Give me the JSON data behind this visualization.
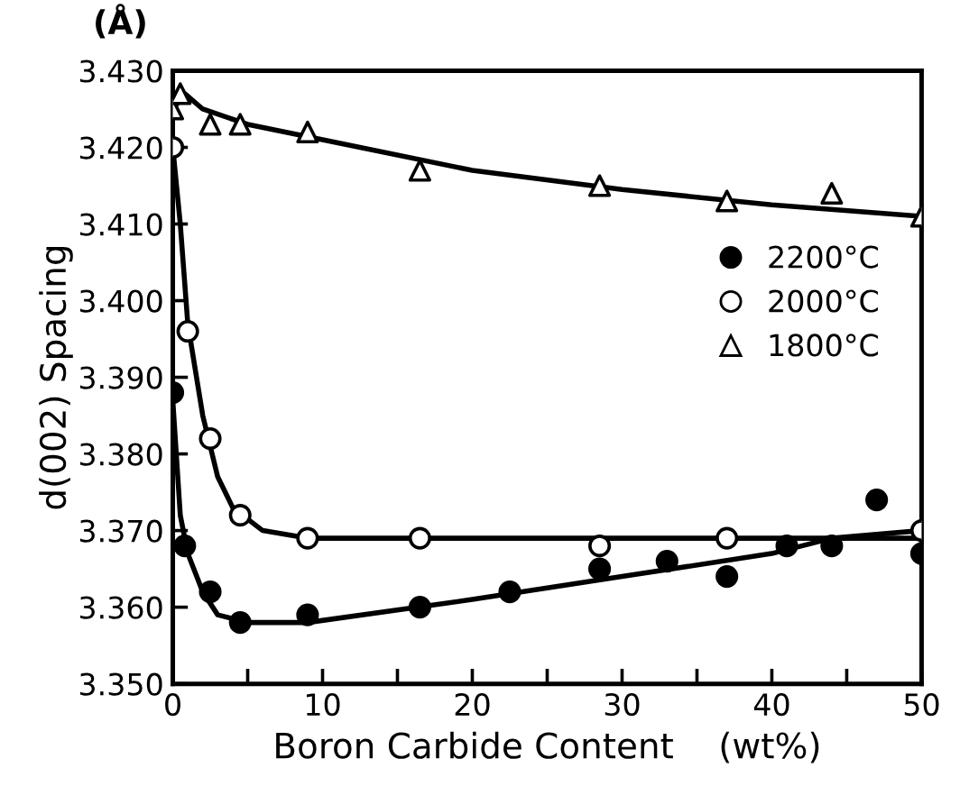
{
  "chart_data": {
    "type": "scatter",
    "xlabel": "Boron Carbide Content    (wt%)",
    "ylabel": "d(002) Spacing",
    "annotations": [
      "(Å)"
    ],
    "xlim": [
      0,
      50
    ],
    "xticks": [
      0,
      {
        "value": 5,
        "label": null
      },
      10,
      {
        "value": 15,
        "label": null
      },
      20,
      {
        "value": 25,
        "label": null
      },
      30,
      {
        "value": 35,
        "label": null
      },
      40,
      {
        "value": 45,
        "label": null
      },
      50
    ],
    "ylim": [
      3.35,
      3.43
    ],
    "yticks": [
      {
        "value": 3.35,
        "label": "3.350"
      },
      {
        "value": 3.36,
        "label": "3.360"
      },
      {
        "value": 3.37,
        "label": "3.370"
      },
      {
        "value": 3.38,
        "label": "3.380"
      },
      {
        "value": 3.39,
        "label": "3.390"
      },
      {
        "value": 3.4,
        "label": "3.400"
      },
      {
        "value": 3.41,
        "label": "3.410"
      },
      {
        "value": 3.42,
        "label": "3.420"
      },
      {
        "value": 3.43,
        "label": "3.430"
      }
    ],
    "grid": false,
    "legend": "right",
    "series": [
      {
        "name": "2200°C",
        "marker": "circle",
        "color": "#000000",
        "x": [
          0,
          0.8,
          2.5,
          4.5,
          9,
          16.5,
          22.5,
          28.5,
          33,
          37,
          41,
          44,
          47,
          50
        ],
        "values": [
          3.388,
          3.368,
          3.362,
          3.358,
          3.359,
          3.36,
          3.362,
          3.365,
          3.366,
          3.364,
          3.368,
          3.368,
          3.374,
          3.367
        ]
      },
      {
        "name": "2000°C",
        "marker": "circle",
        "color": "#ffffff",
        "x": [
          0,
          1,
          2.5,
          4.5,
          9,
          16.5,
          28.5,
          37,
          50
        ],
        "values": [
          3.42,
          3.396,
          3.382,
          3.372,
          3.369,
          3.369,
          3.368,
          3.369,
          3.37
        ]
      },
      {
        "name": "1800°C",
        "marker": "triangle",
        "color": "#ffffff",
        "x": [
          0,
          0.5,
          2.5,
          4.5,
          9,
          16.5,
          28.5,
          37,
          44,
          50
        ],
        "values": [
          3.425,
          3.427,
          3.423,
          3.423,
          3.422,
          3.417,
          3.415,
          3.413,
          3.414,
          3.411
        ]
      },
      {
        "type": "line",
        "marker": "none",
        "color": "#000000",
        "x": [
          0,
          0.5,
          1,
          2,
          3,
          5,
          9,
          20,
          30,
          40,
          44,
          50
        ],
        "values": [
          3.387,
          3.372,
          3.367,
          3.362,
          3.359,
          3.358,
          3.358,
          3.361,
          3.364,
          3.367,
          3.369,
          3.37
        ]
      },
      {
        "type": "line",
        "marker": "none",
        "color": "#000000",
        "x": [
          0,
          0.5,
          1,
          2,
          3,
          4,
          6,
          9,
          20,
          50
        ],
        "values": [
          3.42,
          3.41,
          3.397,
          3.385,
          3.377,
          3.373,
          3.37,
          3.369,
          3.369,
          3.369
        ]
      },
      {
        "type": "line",
        "marker": "none",
        "color": "#000000",
        "x": [
          0,
          0.8,
          2,
          5,
          10,
          20,
          30,
          40,
          50
        ],
        "values": [
          3.425,
          3.427,
          3.425,
          3.423,
          3.421,
          3.417,
          3.4145,
          3.4125,
          3.411
        ]
      }
    ]
  }
}
